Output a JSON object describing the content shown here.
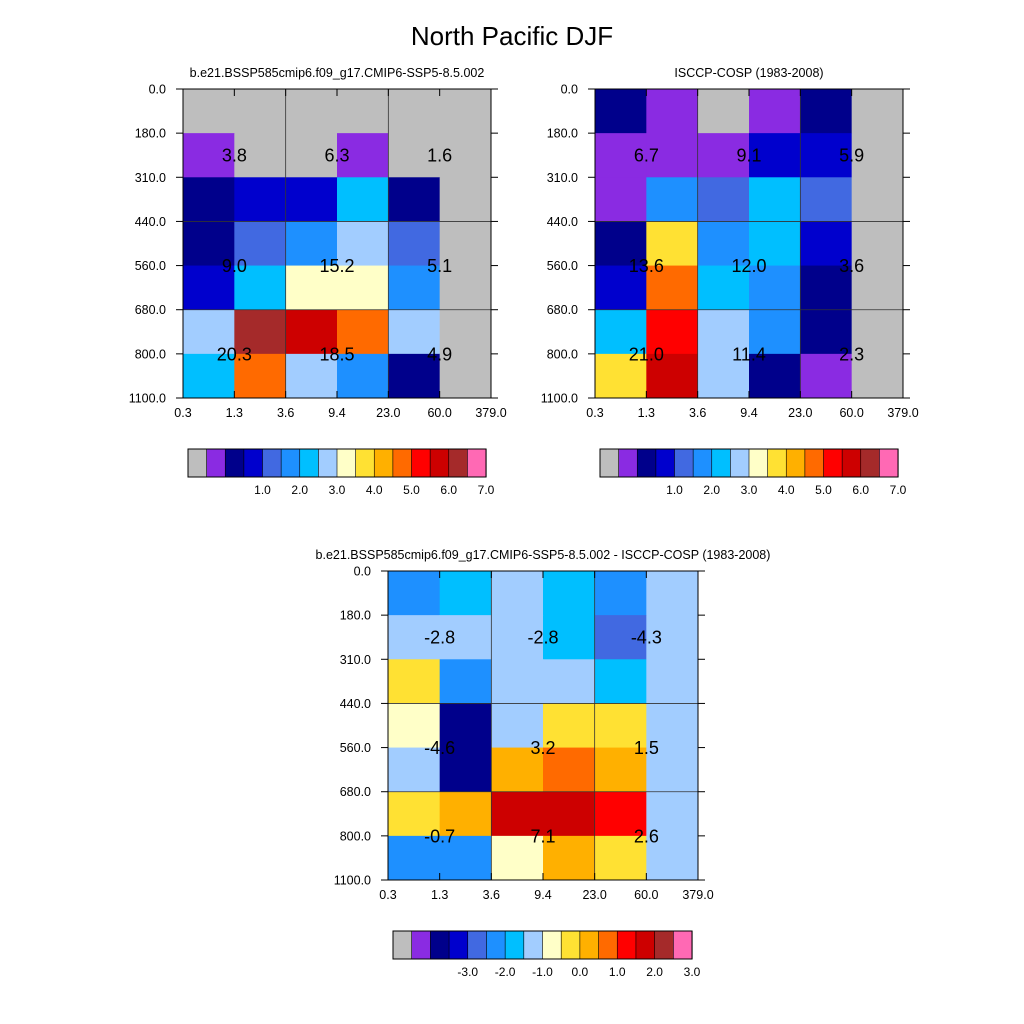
{
  "figure": {
    "title": "North Pacific DJF"
  },
  "colors": {
    "missing": "#bebebe",
    "palette": [
      "#bebebe",
      "#8a2be2",
      "#00008b",
      "#0000cd",
      "#4169e1",
      "#1e90ff",
      "#00bfff",
      "#a2cdff",
      "#ffffc8",
      "#ffe133",
      "#ffb000",
      "#ff6a00",
      "#ff0000",
      "#cd0000",
      "#a52a2a",
      "#ff69b4"
    ]
  },
  "chart_data": [
    {
      "type": "heatmap",
      "title": "b.e21.BSSP585cmip6.f09_g17.CMIP6-SSP5-8.5.002",
      "x_ticks": [
        "0.3",
        "1.3",
        "3.6",
        "9.4",
        "23.0",
        "60.0",
        "379.0"
      ],
      "y_ticks": [
        "0.0",
        "180.0",
        "310.0",
        "440.0",
        "560.0",
        "680.0",
        "800.0",
        "1100.0"
      ],
      "cells": [
        [
          0,
          0,
          0,
          0,
          0,
          0
        ],
        [
          1,
          0,
          0,
          1,
          0,
          0
        ],
        [
          2,
          3,
          3,
          6,
          2,
          0
        ],
        [
          2,
          4,
          5,
          7,
          4,
          0
        ],
        [
          3,
          6,
          8,
          8,
          5,
          0
        ],
        [
          7,
          14,
          13,
          11,
          7,
          0
        ],
        [
          6,
          11,
          7,
          5,
          2,
          0
        ]
      ],
      "labels": [
        {
          "row": 1.5,
          "col": 1,
          "text": "3.8"
        },
        {
          "row": 1.5,
          "col": 3,
          "text": "6.3"
        },
        {
          "row": 1.5,
          "col": 5,
          "text": "1.6"
        },
        {
          "row": 4,
          "col": 1,
          "text": "9.0"
        },
        {
          "row": 4,
          "col": 3,
          "text": "15.2"
        },
        {
          "row": 4,
          "col": 5,
          "text": "5.1"
        },
        {
          "row": 6,
          "col": 1,
          "text": "20.3"
        },
        {
          "row": 6,
          "col": 3,
          "text": "18.5"
        },
        {
          "row": 6,
          "col": 5,
          "text": "4.9"
        }
      ],
      "colorbar_labels": [
        "1.0",
        "2.0",
        "3.0",
        "4.0",
        "5.0",
        "6.0",
        "7.0"
      ]
    },
    {
      "type": "heatmap",
      "title": "ISCCP-COSP (1983-2008)",
      "x_ticks": [
        "0.3",
        "1.3",
        "3.6",
        "9.4",
        "23.0",
        "60.0",
        "379.0"
      ],
      "y_ticks": [
        "0.0",
        "180.0",
        "310.0",
        "440.0",
        "560.0",
        "680.0",
        "800.0",
        "1100.0"
      ],
      "cells": [
        [
          2,
          1,
          0,
          1,
          2,
          0
        ],
        [
          1,
          1,
          1,
          3,
          3,
          0
        ],
        [
          1,
          5,
          4,
          6,
          4,
          0
        ],
        [
          2,
          9,
          5,
          6,
          3,
          0
        ],
        [
          3,
          11,
          6,
          5,
          2,
          0
        ],
        [
          6,
          12,
          7,
          5,
          2,
          0
        ],
        [
          9,
          13,
          7,
          2,
          1,
          0
        ]
      ],
      "labels": [
        {
          "row": 1.5,
          "col": 1,
          "text": "6.7"
        },
        {
          "row": 1.5,
          "col": 3,
          "text": "9.1"
        },
        {
          "row": 1.5,
          "col": 5,
          "text": "5.9"
        },
        {
          "row": 4,
          "col": 1,
          "text": "13.6"
        },
        {
          "row": 4,
          "col": 3,
          "text": "12.0"
        },
        {
          "row": 4,
          "col": 5,
          "text": "3.6"
        },
        {
          "row": 6,
          "col": 1,
          "text": "21.0"
        },
        {
          "row": 6,
          "col": 3,
          "text": "11.4"
        },
        {
          "row": 6,
          "col": 5,
          "text": "2.3"
        }
      ],
      "colorbar_labels": [
        "1.0",
        "2.0",
        "3.0",
        "4.0",
        "5.0",
        "6.0",
        "7.0"
      ]
    },
    {
      "type": "heatmap",
      "title": "b.e21.BSSP585cmip6.f09_g17.CMIP6-SSP5-8.5.002 - ISCCP-COSP (1983-2008)",
      "x_ticks": [
        "0.3",
        "1.3",
        "3.6",
        "9.4",
        "23.0",
        "60.0",
        "379.0"
      ],
      "y_ticks": [
        "0.0",
        "180.0",
        "310.0",
        "440.0",
        "560.0",
        "680.0",
        "800.0",
        "1100.0"
      ],
      "cells": [
        [
          5,
          6,
          7,
          6,
          5,
          7
        ],
        [
          7,
          7,
          7,
          6,
          4,
          7
        ],
        [
          9,
          5,
          7,
          7,
          6,
          7
        ],
        [
          8,
          2,
          7,
          9,
          9,
          7
        ],
        [
          7,
          2,
          10,
          11,
          10,
          7
        ],
        [
          9,
          10,
          13,
          13,
          12,
          7
        ],
        [
          5,
          5,
          8,
          10,
          9,
          7
        ]
      ],
      "labels": [
        {
          "row": 1.5,
          "col": 1,
          "text": "-2.8"
        },
        {
          "row": 1.5,
          "col": 3,
          "text": "-2.8"
        },
        {
          "row": 1.5,
          "col": 5,
          "text": "-4.3"
        },
        {
          "row": 4,
          "col": 1,
          "text": "-4.6"
        },
        {
          "row": 4,
          "col": 3,
          "text": "3.2"
        },
        {
          "row": 4,
          "col": 5,
          "text": "1.5"
        },
        {
          "row": 6,
          "col": 1,
          "text": "-0.7"
        },
        {
          "row": 6,
          "col": 3,
          "text": "7.1"
        },
        {
          "row": 6,
          "col": 5,
          "text": "2.6"
        }
      ],
      "colorbar_labels": [
        "-3.0",
        "-2.0",
        "-1.0",
        "0.0",
        "1.0",
        "2.0",
        "3.0"
      ]
    }
  ]
}
